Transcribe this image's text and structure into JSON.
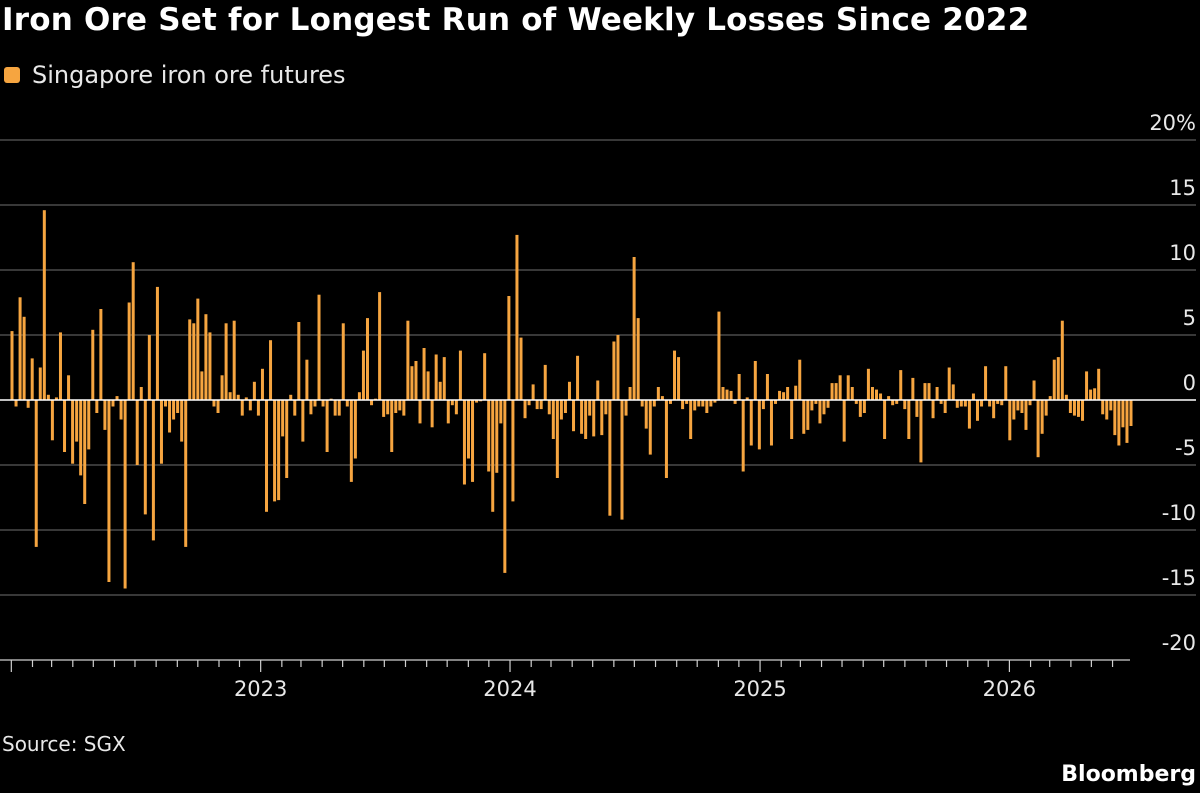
{
  "title": "Iron Ore Set for Longest Run of Weekly Losses Since 2022",
  "source": "Source: SGX",
  "brand": "Bloomberg",
  "colors": {
    "bar": "#f6a540",
    "background": "#000000",
    "grid": "#5a5a5a",
    "zero_line": "#ffffff"
  },
  "chart_data": {
    "type": "bar",
    "legend": {
      "position": "top-left",
      "entries": [
        "Singapore iron ore futures"
      ]
    },
    "ylim": [
      -20,
      20
    ],
    "y_ticks": [
      -20,
      -15,
      -10,
      -5,
      0,
      5,
      10,
      15,
      20
    ],
    "y_tick_labels": [
      "-20",
      "-15",
      "-10",
      "-5",
      "0",
      "5",
      "10",
      "15",
      "20%"
    ],
    "x_start": "2022-01-02",
    "x_end": "2026-06-28",
    "x_tick_labels": [
      "2023",
      "2024",
      "2025",
      "2026"
    ],
    "x_tick_dates": [
      "2023-01-01",
      "2024-01-01",
      "2025-01-01",
      "2026-01-01"
    ],
    "grid": true,
    "series": [
      {
        "name": "Singapore iron ore futures",
        "values": [
          5.3,
          -0.5,
          7.9,
          6.4,
          -0.6,
          3.2,
          -11.3,
          2.5,
          14.6,
          0.4,
          -3.1,
          0.2,
          5.2,
          -4.0,
          1.9,
          -4.9,
          -3.2,
          -5.8,
          -8.0,
          -3.8,
          5.4,
          -1.0,
          7.0,
          -2.3,
          -14.0,
          -0.5,
          0.3,
          -1.5,
          -14.5,
          7.5,
          10.6,
          -5.0,
          1.0,
          -8.8,
          5.0,
          -10.8,
          8.7,
          -4.9,
          -0.5,
          -2.5,
          -1.5,
          -1.0,
          -3.2,
          -11.3,
          6.2,
          5.9,
          7.8,
          2.2,
          6.6,
          5.2,
          -0.5,
          -1.0,
          1.9,
          5.9,
          0.6,
          6.1,
          0.4,
          -1.2,
          0.2,
          -0.8,
          1.4,
          -1.2,
          2.4,
          -8.6,
          4.6,
          -7.8,
          -7.7,
          -2.8,
          -6.0,
          0.4,
          -1.2,
          6.0,
          -3.2,
          3.1,
          -1.1,
          -0.5,
          8.1,
          -0.5,
          -4.0,
          0.1,
          -1.2,
          -1.2,
          5.9,
          -0.5,
          -6.3,
          -4.5,
          0.6,
          3.8,
          6.3,
          -0.4,
          0.1,
          8.3,
          -1.3,
          -1.1,
          -4.0,
          -1.0,
          -0.8,
          -1.2,
          6.1,
          2.6,
          3.0,
          -1.8,
          4.0,
          2.2,
          -2.1,
          3.5,
          1.4,
          3.3,
          -1.8,
          -0.4,
          -1.1,
          3.8,
          -6.5,
          -4.5,
          -6.3,
          -0.2,
          -0.1,
          3.6,
          -5.5,
          -8.6,
          -5.6,
          -1.8,
          -13.3,
          8.0,
          -7.8,
          12.7,
          4.8,
          -1.4,
          -0.4,
          1.2,
          -0.7,
          -0.7,
          2.7,
          -1.1,
          -3.0,
          -6.0,
          -1.5,
          -1.0,
          1.4,
          -2.4,
          3.4,
          -2.6,
          -3.0,
          -1.2,
          -2.8,
          1.5,
          -2.7,
          -1.1,
          -8.9,
          4.5,
          5.0,
          -9.2,
          -1.2,
          1.0,
          11.0,
          6.3,
          -0.5,
          -2.2,
          -4.2,
          -0.5,
          1.0,
          0.3,
          -6.0,
          -0.3,
          3.8,
          3.3,
          -0.7,
          -0.3,
          -3.0,
          -0.8,
          -0.5,
          -0.5,
          -1.0,
          -0.5,
          -0.2,
          6.8,
          1.0,
          0.8,
          0.7,
          -0.3,
          2.0,
          -5.5,
          0.2,
          -3.5,
          3.0,
          -3.8,
          -0.7,
          2.0,
          -3.5,
          -0.3,
          0.7,
          0.6,
          1.0,
          -3.0,
          1.1,
          3.1,
          -2.6,
          -2.3,
          -0.8,
          -0.3,
          -1.8,
          -1.1,
          -0.6,
          1.3,
          1.3,
          1.9,
          -3.2,
          1.9,
          1.0,
          -0.3,
          -1.3,
          -1.0,
          2.4,
          1.0,
          0.8,
          0.5,
          -3.0,
          0.3,
          -0.4,
          -0.3,
          2.3,
          -0.7,
          -3.0,
          1.7,
          -1.3,
          -4.8,
          1.3,
          1.3,
          -1.4,
          1.0,
          -0.3,
          -1.0,
          2.5,
          1.2,
          -0.6,
          -0.5,
          -0.5,
          -2.2,
          0.5,
          -1.6,
          -0.5,
          2.6,
          -0.5,
          -1.4,
          -0.3,
          -0.4,
          2.6,
          -3.1,
          -1.5,
          -0.8,
          -1.0,
          -2.3,
          -0.4,
          1.5,
          -4.4,
          -2.6,
          -1.2,
          0.3,
          3.1,
          3.3,
          6.1,
          0.4,
          -1.0,
          -1.2,
          -1.3,
          -1.6,
          2.2,
          0.8,
          0.9,
          2.4,
          -1.1,
          -1.5,
          -0.8,
          -2.7,
          -3.5,
          -2.1,
          -3.3,
          -2.0
        ]
      }
    ]
  }
}
